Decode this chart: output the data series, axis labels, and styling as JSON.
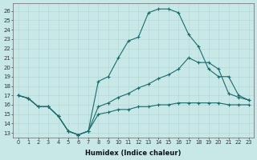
{
  "xlabel": "Humidex (Indice chaleur)",
  "bg_color": "#c8e8e8",
  "line_color": "#1a6b6b",
  "xlim": [
    -0.5,
    23.5
  ],
  "ylim": [
    12.5,
    26.8
  ],
  "xticks": [
    0,
    1,
    2,
    3,
    4,
    5,
    6,
    7,
    8,
    9,
    10,
    11,
    12,
    13,
    14,
    15,
    16,
    17,
    18,
    19,
    20,
    21,
    22,
    23
  ],
  "yticks": [
    13,
    14,
    15,
    16,
    17,
    18,
    19,
    20,
    21,
    22,
    23,
    24,
    25,
    26
  ],
  "line1_y": [
    17.0,
    16.7,
    15.8,
    15.8,
    14.8,
    13.2,
    12.8,
    13.2,
    18.5,
    19.0,
    21.0,
    22.8,
    23.2,
    25.8,
    26.2,
    26.2,
    25.8,
    23.5,
    22.2,
    19.8,
    19.0,
    19.0,
    17.0,
    16.5
  ],
  "line2_y": [
    17.0,
    16.7,
    15.8,
    15.8,
    14.8,
    13.2,
    12.8,
    13.2,
    15.8,
    16.2,
    16.8,
    17.2,
    17.8,
    18.2,
    18.8,
    19.2,
    19.8,
    21.0,
    20.5,
    20.5,
    19.8,
    17.2,
    16.8,
    16.5
  ],
  "line3_y": [
    17.0,
    16.7,
    15.8,
    15.8,
    14.8,
    13.2,
    12.8,
    13.2,
    15.0,
    15.2,
    15.5,
    15.5,
    15.8,
    15.8,
    16.0,
    16.0,
    16.2,
    16.2,
    16.2,
    16.2,
    16.2,
    16.0,
    16.0,
    16.0
  ]
}
